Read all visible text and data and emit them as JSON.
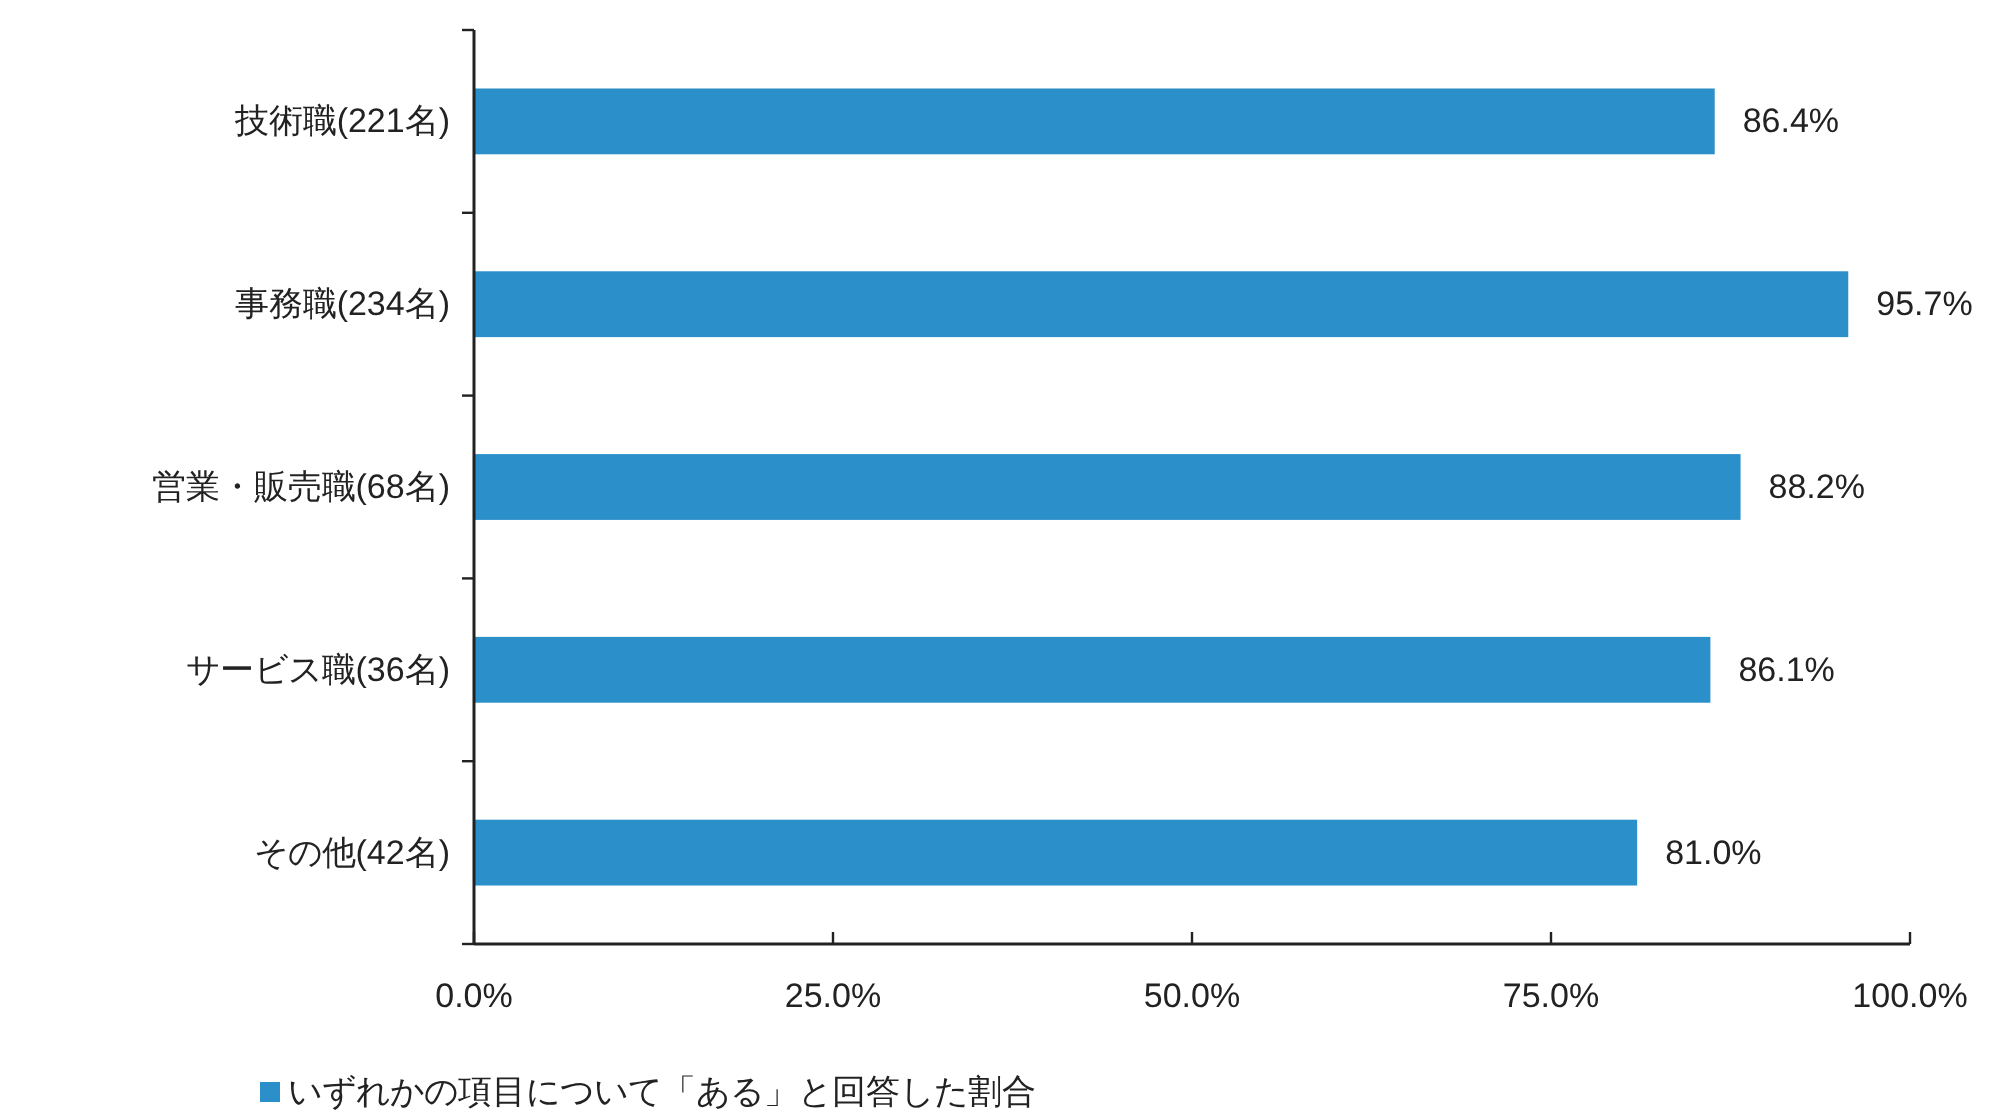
{
  "chart_data": {
    "type": "bar",
    "orientation": "horizontal",
    "categories": [
      "技術職(221名)",
      "事務職(234名)",
      "営業・販売職(68名)",
      "サービス職(36名)",
      "その他(42名)"
    ],
    "series": [
      {
        "name": "いずれかの項目について「ある」と回答した割合",
        "color": "#2b8fc9",
        "values": [
          86.4,
          95.7,
          88.2,
          86.1,
          81.0
        ],
        "value_labels": [
          "86.4%",
          "95.7%",
          "88.2%",
          "86.1%",
          "81.0%"
        ]
      }
    ],
    "xlim": [
      0,
      100
    ],
    "xticks": [
      {
        "value": 0,
        "label": "0.0%"
      },
      {
        "value": 25,
        "label": "25.0%"
      },
      {
        "value": 50,
        "label": "50.0%"
      },
      {
        "value": 75,
        "label": "75.0%"
      },
      {
        "value": 100,
        "label": "100.0%"
      }
    ],
    "legend": "bottom left"
  }
}
